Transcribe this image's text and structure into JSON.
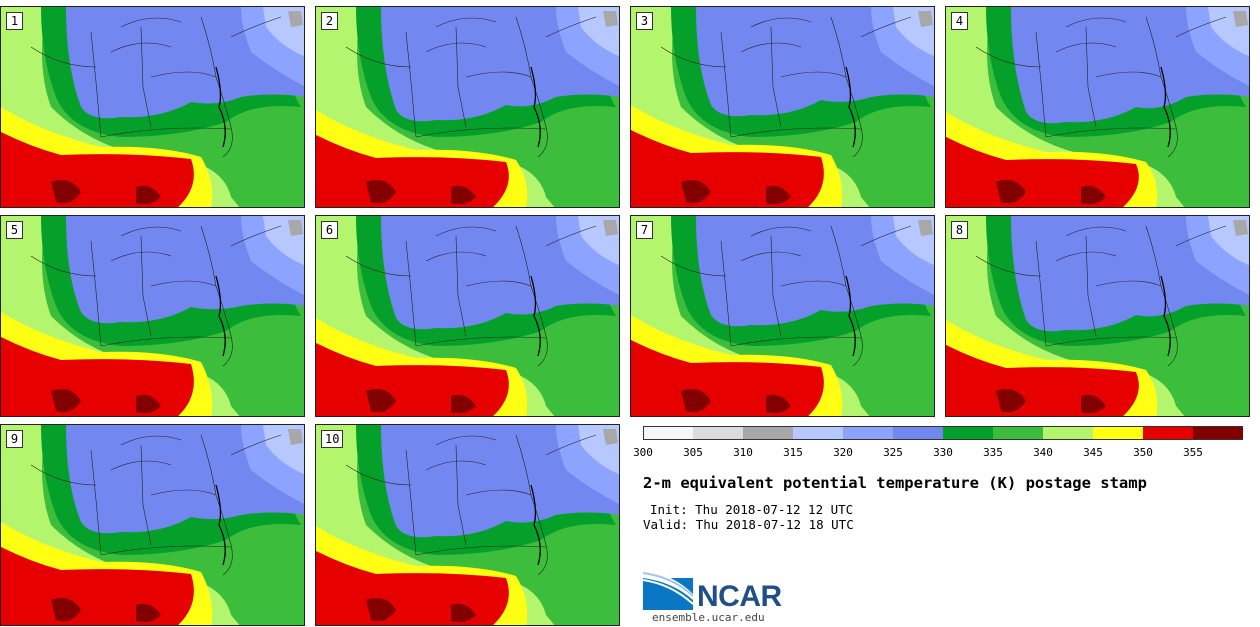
{
  "title": "2-m equivalent potential temperature (K) postage stamp",
  "init": "Init: Thu 2018-07-12 12 UTC",
  "valid": "Valid: Thu 2018-07-12 18 UTC",
  "site": "ensemble.ucar.edu",
  "logo_text": "NCAR",
  "members": [
    {
      "label": "1",
      "shift": 0
    },
    {
      "label": "2",
      "shift": 3
    },
    {
      "label": "3",
      "shift": -2
    },
    {
      "label": "4",
      "shift": 5
    },
    {
      "label": "5",
      "shift": -4
    },
    {
      "label": "6",
      "shift": 2
    },
    {
      "label": "7",
      "shift": -1
    },
    {
      "label": "8",
      "shift": 4
    },
    {
      "label": "9",
      "shift": -3
    },
    {
      "label": "10",
      "shift": 1
    }
  ],
  "colorbar": {
    "ticks": [
      "300",
      "305",
      "310",
      "315",
      "320",
      "325",
      "330",
      "335",
      "340",
      "345",
      "350",
      "355"
    ],
    "colors": [
      "#f6f6f6",
      "#dcdcdc",
      "#a8a8a8",
      "#b6c8ff",
      "#8ca4ff",
      "#7288f0",
      "#05a02a",
      "#3cbd3c",
      "#b4f56e",
      "#ffff14",
      "#e60000",
      "#820000"
    ]
  }
}
